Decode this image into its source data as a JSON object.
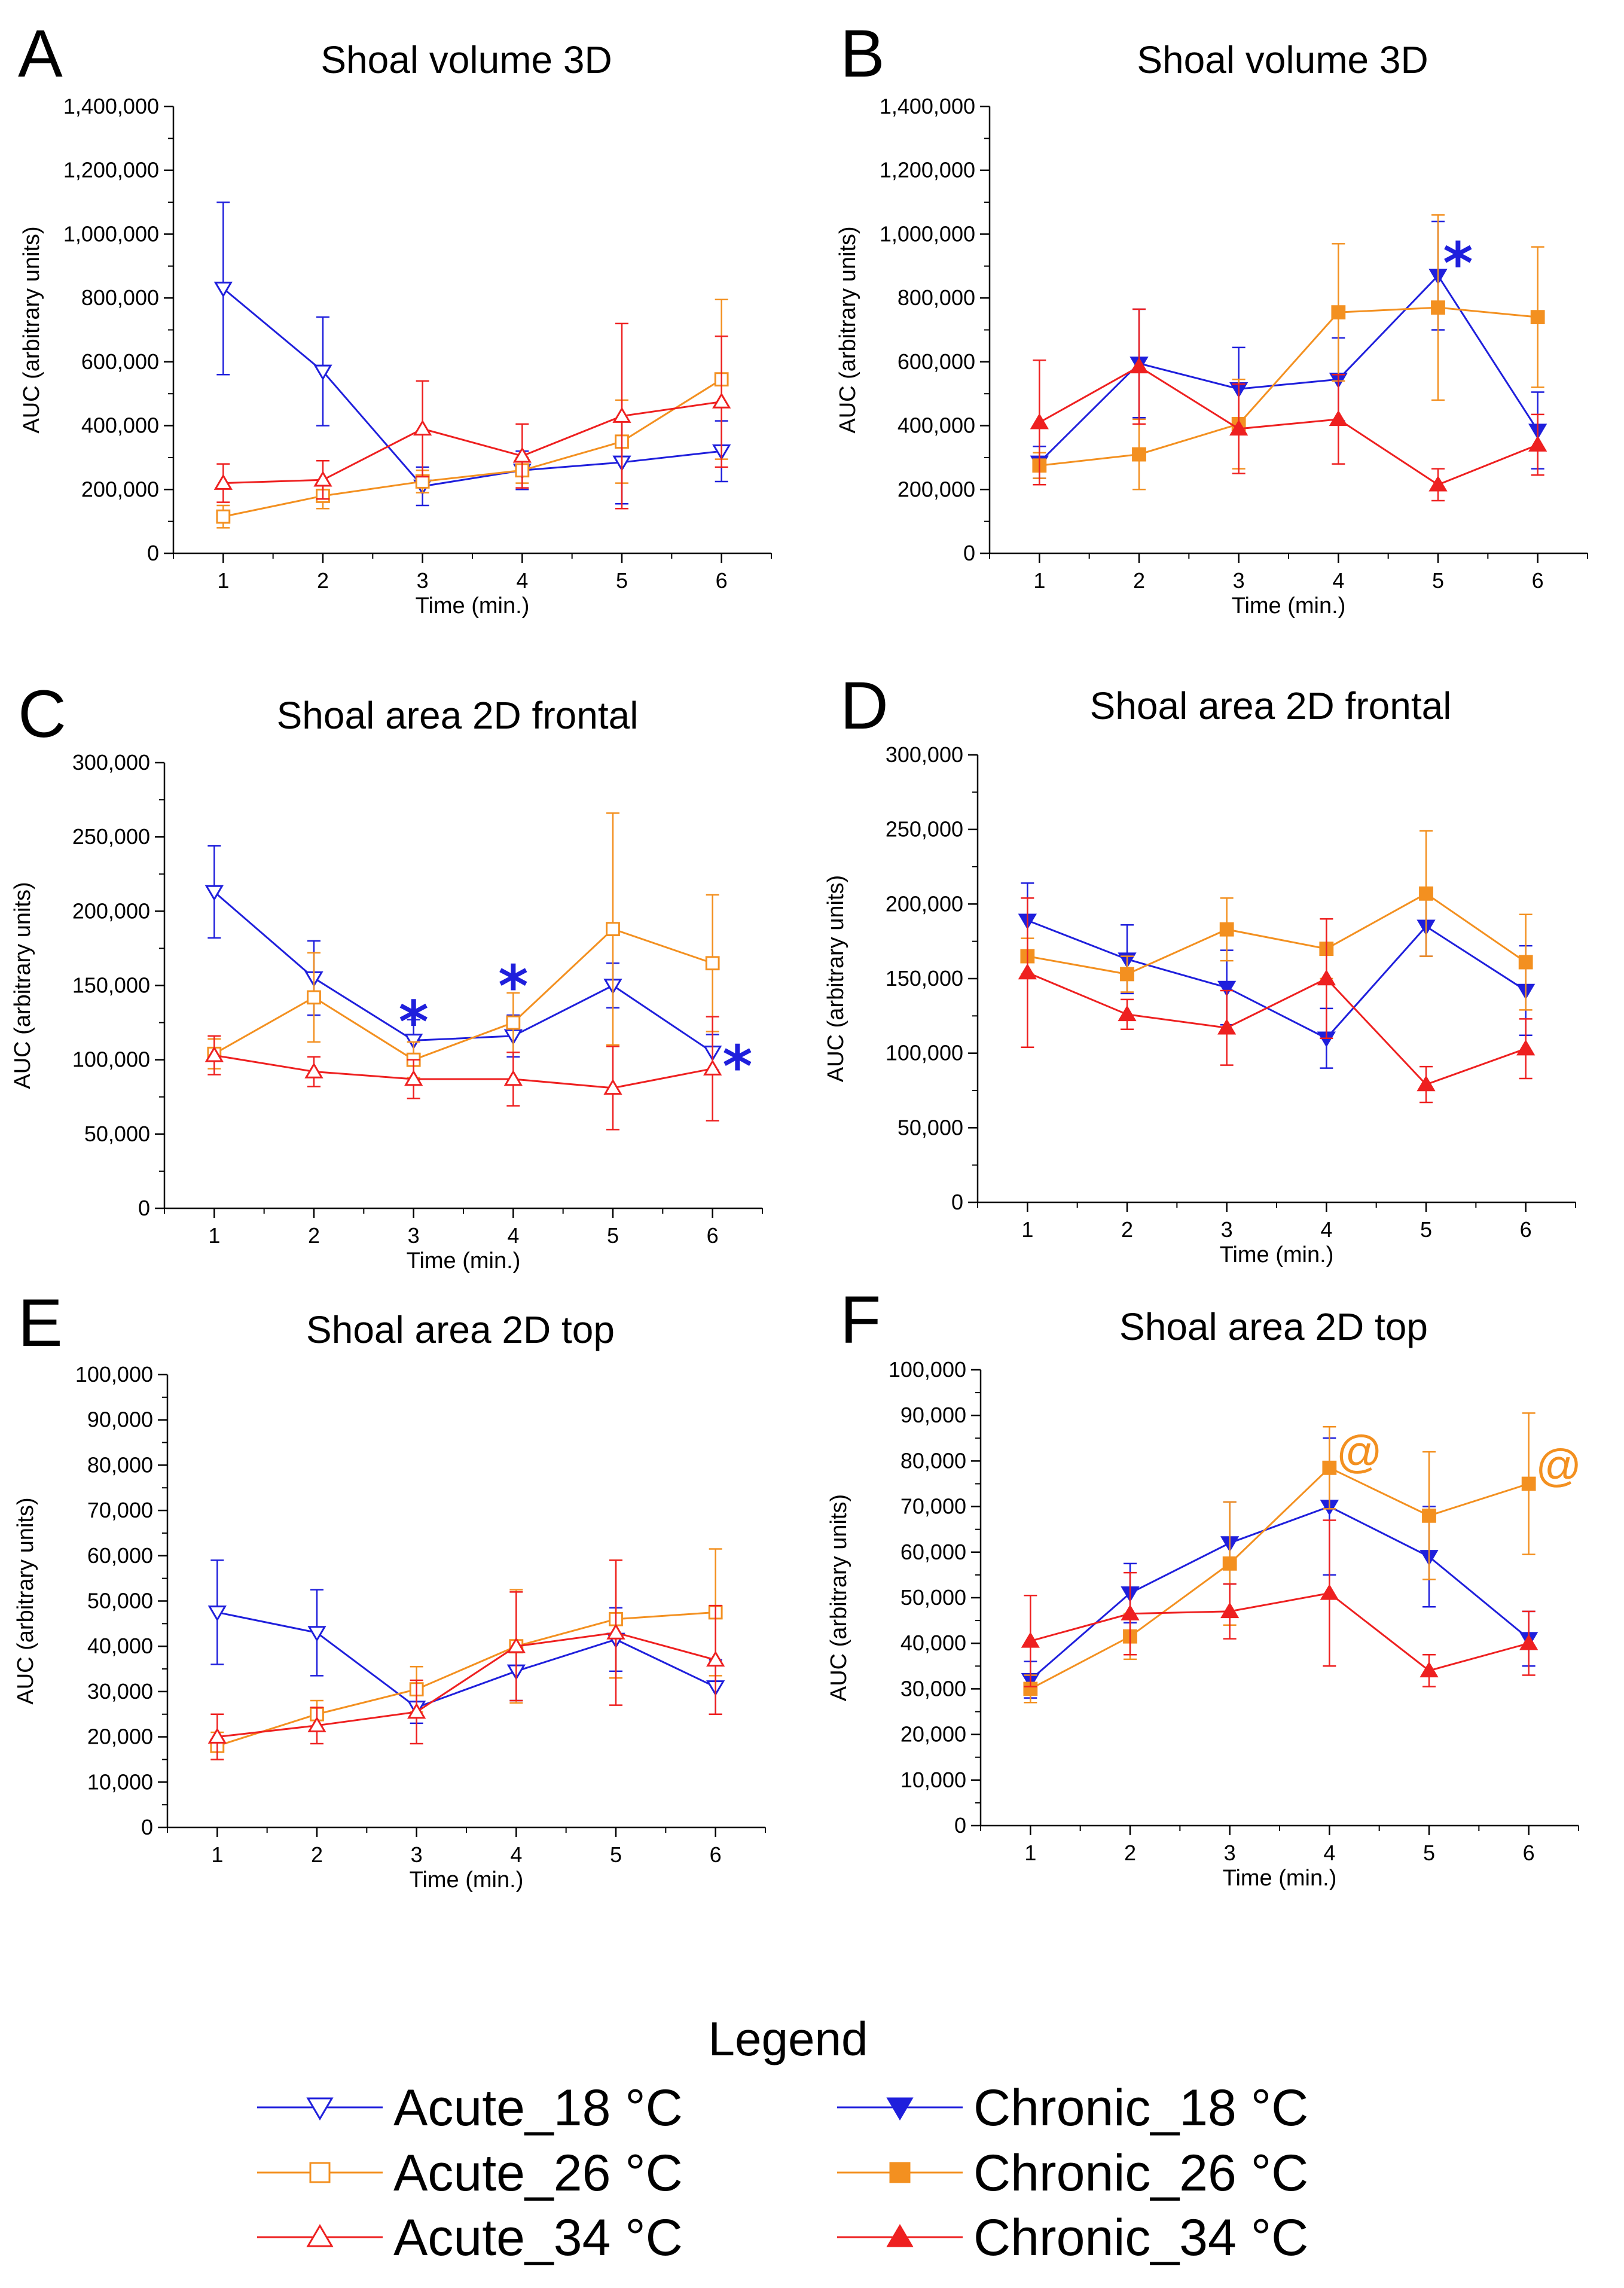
{
  "legend": {
    "title": "Legend",
    "entries": [
      {
        "key": "acute18",
        "label": "Acute_18 °C"
      },
      {
        "key": "acute26",
        "label": "Acute_26 °C"
      },
      {
        "key": "acute34",
        "label": "Acute_34 °C"
      },
      {
        "key": "chronic18",
        "label": "Chronic_18 °C"
      },
      {
        "key": "chronic26",
        "label": "Chronic_26 °C"
      },
      {
        "key": "chronic34",
        "label": "Chronic_34 °C"
      }
    ]
  },
  "series_styles": {
    "acute18": {
      "color": "#1f1fdc",
      "marker": "triangle-down",
      "filled": false
    },
    "acute26": {
      "color": "#f39020",
      "marker": "square",
      "filled": false
    },
    "acute34": {
      "color": "#ee2020",
      "marker": "triangle-up",
      "filled": false
    },
    "chronic18": {
      "color": "#1f1fdc",
      "marker": "triangle-down",
      "filled": true
    },
    "chronic26": {
      "color": "#f39020",
      "marker": "square",
      "filled": true
    },
    "chronic34": {
      "color": "#ee2020",
      "marker": "triangle-up",
      "filled": true
    }
  },
  "chart_data": [
    {
      "type": "line",
      "panel": "A",
      "title": "Shoal volume 3D",
      "xlabel": "Time (min.)",
      "ylabel": "AUC (arbitrary units)",
      "x": [
        1,
        2,
        3,
        4,
        5,
        6
      ],
      "xlim": [
        0.5,
        6.5
      ],
      "ylim": [
        0,
        1400000
      ],
      "ystep": 200000,
      "yticks": [
        "0",
        "200,000",
        "400,000",
        "600,000",
        "800,000",
        "1,000,000",
        "1,200,000",
        "1,400,000"
      ],
      "series": [
        {
          "key": "acute18",
          "name": "Acute_18 °C",
          "values": [
            830000,
            570000,
            210000,
            260000,
            285000,
            320000
          ],
          "err": [
            270000,
            170000,
            60000,
            60000,
            130000,
            95000
          ]
        },
        {
          "key": "acute26",
          "name": "Acute_26 °C",
          "values": [
            115000,
            180000,
            225000,
            260000,
            350000,
            545000
          ],
          "err": [
            35000,
            40000,
            35000,
            40000,
            130000,
            250000
          ]
        },
        {
          "key": "acute34",
          "name": "Acute_34 °C",
          "values": [
            220000,
            230000,
            390000,
            305000,
            430000,
            475000
          ],
          "err": [
            60000,
            60000,
            150000,
            100000,
            290000,
            205000
          ]
        }
      ],
      "annotations": []
    },
    {
      "type": "line",
      "panel": "B",
      "title": "Shoal volume 3D",
      "xlabel": "Time (min.)",
      "ylabel": "AUC (arbitrary units)",
      "x": [
        1,
        2,
        3,
        4,
        5,
        6
      ],
      "xlim": [
        0.5,
        6.5
      ],
      "ylim": [
        0,
        1400000
      ],
      "ystep": 200000,
      "yticks": [
        "0",
        "200,000",
        "400,000",
        "600,000",
        "800,000",
        "1,000,000",
        "1,200,000",
        "1,400,000"
      ],
      "series": [
        {
          "key": "chronic18",
          "name": "Chronic_18 °C",
          "values": [
            285000,
            595000,
            515000,
            545000,
            870000,
            385000
          ],
          "err": [
            50000,
            170000,
            130000,
            130000,
            170000,
            120000
          ]
        },
        {
          "key": "chronic26",
          "name": "Chronic_26 °C",
          "values": [
            275000,
            310000,
            405000,
            755000,
            770000,
            740000
          ],
          "err": [
            40000,
            110000,
            140000,
            215000,
            290000,
            220000
          ]
        },
        {
          "key": "chronic34",
          "name": "Chronic_34 °C",
          "values": [
            410000,
            585000,
            390000,
            420000,
            215000,
            340000
          ],
          "err": [
            195000,
            180000,
            140000,
            140000,
            50000,
            95000
          ]
        }
      ],
      "annotations": [
        {
          "text": "*",
          "kind": "star",
          "x": 5.2,
          "y": 920000,
          "color": "#1f1fdc"
        }
      ]
    },
    {
      "type": "line",
      "panel": "C",
      "title": "Shoal area 2D frontal",
      "xlabel": "Time (min.)",
      "ylabel": "AUC (arbitrary units)",
      "x": [
        1,
        2,
        3,
        4,
        5,
        6
      ],
      "xlim": [
        0.5,
        6.5
      ],
      "ylim": [
        0,
        300000
      ],
      "ystep": 50000,
      "yticks": [
        "0",
        "50,000",
        "100,000",
        "150,000",
        "200,000",
        "250,000",
        "300,000"
      ],
      "series": [
        {
          "key": "acute18",
          "name": "Acute_18 °C",
          "values": [
            213000,
            155000,
            113000,
            116000,
            150000,
            105000
          ],
          "err": [
            31000,
            25000,
            14000,
            14000,
            15000,
            12000
          ]
        },
        {
          "key": "acute26",
          "name": "Acute_26 °C",
          "values": [
            104000,
            142000,
            100000,
            125000,
            188000,
            165000
          ],
          "err": [
            10000,
            30000,
            12000,
            20000,
            78000,
            46000
          ]
        },
        {
          "key": "acute34",
          "name": "Acute_34 °C",
          "values": [
            103000,
            92000,
            87000,
            87000,
            81000,
            94000
          ],
          "err": [
            13000,
            10000,
            13000,
            18000,
            28000,
            35000
          ]
        }
      ],
      "annotations": [
        {
          "text": "*",
          "kind": "star",
          "x": 3.0,
          "y": 128000,
          "color": "#1f1fdc"
        },
        {
          "text": "*",
          "kind": "star",
          "x": 4.0,
          "y": 152000,
          "color": "#1f1fdc"
        },
        {
          "text": "*",
          "kind": "star",
          "x": 6.25,
          "y": 98000,
          "color": "#1f1fdc"
        }
      ]
    },
    {
      "type": "line",
      "panel": "D",
      "title": "Shoal area 2D frontal",
      "xlabel": "Time (min.)",
      "ylabel": "AUC (arbitrary units)",
      "x": [
        1,
        2,
        3,
        4,
        5,
        6
      ],
      "xlim": [
        0.5,
        6.5
      ],
      "ylim": [
        0,
        300000
      ],
      "ystep": 50000,
      "yticks": [
        "0",
        "50,000",
        "100,000",
        "150,000",
        "200,000",
        "250,000",
        "300,000"
      ],
      "series": [
        {
          "key": "chronic18",
          "name": "Chronic_18 °C",
          "values": [
            189000,
            163000,
            144000,
            110000,
            185000,
            142000
          ],
          "err": [
            25000,
            23000,
            25000,
            20000,
            20000,
            30000
          ]
        },
        {
          "key": "chronic26",
          "name": "Chronic_26 °C",
          "values": [
            165000,
            153000,
            183000,
            170000,
            207000,
            161000
          ],
          "err": [
            12000,
            12000,
            21000,
            20000,
            42000,
            32000
          ]
        },
        {
          "key": "chronic34",
          "name": "Chronic_34 °C",
          "values": [
            154000,
            126000,
            117000,
            150000,
            79000,
            103000
          ],
          "err": [
            50000,
            10000,
            25000,
            40000,
            12000,
            20000
          ]
        }
      ],
      "annotations": []
    },
    {
      "type": "line",
      "panel": "E",
      "title": "Shoal area 2D top",
      "xlabel": "Time (min.)",
      "ylabel": "AUC (arbitrary units)",
      "x": [
        1,
        2,
        3,
        4,
        5,
        6
      ],
      "xlim": [
        0.5,
        6.5
      ],
      "ylim": [
        0,
        100000
      ],
      "ystep": 10000,
      "yticks": [
        "0",
        "10,000",
        "20,000",
        "30,000",
        "40,000",
        "50,000",
        "60,000",
        "70,000",
        "80,000",
        "90,000",
        "100,000"
      ],
      "series": [
        {
          "key": "acute18",
          "name": "Acute_18 °C",
          "values": [
            47500,
            43000,
            26500,
            34500,
            41500,
            31000
          ],
          "err": [
            11500,
            9500,
            3500,
            6500,
            7000,
            6000
          ]
        },
        {
          "key": "acute26",
          "name": "Acute_26 °C",
          "values": [
            18000,
            25000,
            30500,
            40000,
            46000,
            47500
          ],
          "err": [
            3000,
            3000,
            5000,
            12500,
            13000,
            14000
          ]
        },
        {
          "key": "acute34",
          "name": "Acute_34 °C",
          "values": [
            20000,
            22500,
            25500,
            40000,
            43000,
            37000
          ],
          "err": [
            5000,
            4000,
            7000,
            12000,
            16000,
            12000
          ]
        }
      ],
      "annotations": []
    },
    {
      "type": "line",
      "panel": "F",
      "title": "Shoal area 2D top",
      "xlabel": "Time (min.)",
      "ylabel": "AUC (arbitrary units)",
      "x": [
        1,
        2,
        3,
        4,
        5,
        6
      ],
      "xlim": [
        0.5,
        6.5
      ],
      "ylim": [
        0,
        100000
      ],
      "ystep": 10000,
      "yticks": [
        "0",
        "10,000",
        "20,000",
        "30,000",
        "40,000",
        "50,000",
        "60,000",
        "70,000",
        "80,000",
        "90,000",
        "100,000"
      ],
      "series": [
        {
          "key": "chronic18",
          "name": "Chronic_18 °C",
          "values": [
            32000,
            51000,
            62000,
            70000,
            59000,
            41000
          ],
          "err": [
            4000,
            6500,
            9000,
            15000,
            11000,
            6000
          ]
        },
        {
          "key": "chronic26",
          "name": "Chronic_26 °C",
          "values": [
            30000,
            41500,
            57500,
            78500,
            68000,
            75000
          ],
          "err": [
            3000,
            5000,
            13500,
            9000,
            14000,
            15500
          ]
        },
        {
          "key": "chronic34",
          "name": "Chronic_34 °C",
          "values": [
            40500,
            46500,
            47000,
            51000,
            34000,
            40000
          ],
          "err": [
            10000,
            9000,
            6000,
            16000,
            3500,
            7000
          ]
        }
      ],
      "annotations": [
        {
          "text": "@",
          "kind": "at",
          "x": 4.3,
          "y": 82000,
          "color": "#f39020"
        },
        {
          "text": "@",
          "kind": "at",
          "x": 6.3,
          "y": 79000,
          "color": "#f39020"
        }
      ]
    }
  ]
}
